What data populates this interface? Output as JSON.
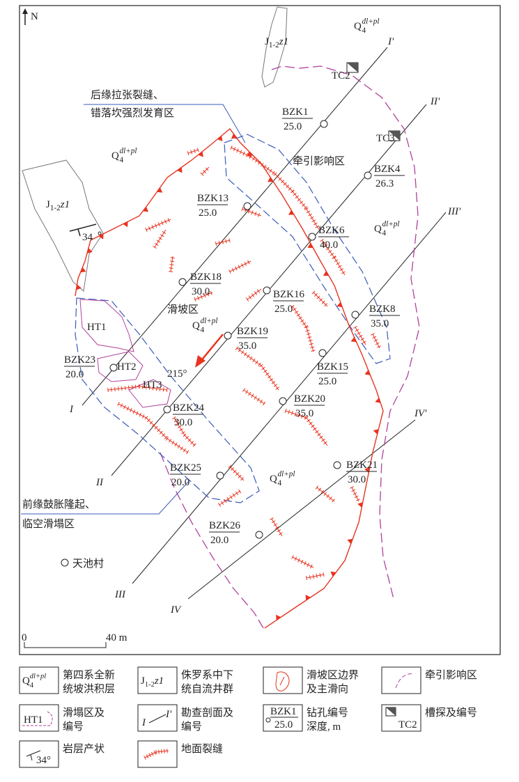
{
  "map": {
    "north": "N",
    "quaternary_labels": [
      {
        "base": "Q",
        "sub": "4",
        "sup": "dl+pl"
      },
      {
        "base": "Q",
        "sub": "4",
        "sup": "dl+pl"
      },
      {
        "base": "Q",
        "sub": "4",
        "sup": "dl+pl"
      },
      {
        "base": "Q",
        "sub": "4",
        "sup": "dl+pl"
      },
      {
        "base": "Q",
        "sub": "4",
        "sup": "dl+pl"
      }
    ],
    "jurassic_labels": [
      {
        "base": "J",
        "sub": "1-2",
        "rest": "z1"
      },
      {
        "base": "J",
        "sub": "1-2",
        "rest": "z1"
      }
    ],
    "dip": "34",
    "sections": [
      {
        "start": "I",
        "end": "I'"
      },
      {
        "start": "II",
        "end": "II'"
      },
      {
        "start": "III",
        "end": "III'"
      },
      {
        "start": "IV",
        "end": "IV'"
      }
    ],
    "trenches": [
      "TC2",
      "TC3"
    ],
    "callouts": [
      [
        "后缘拉张裂缝、",
        "错落坎强烈发育区"
      ],
      [
        "前缘鼓胀隆起、",
        "临空滑塌区"
      ]
    ],
    "landslide_label": "滑坡区",
    "traction_label": "牵引影响区",
    "slide_direction": "215°",
    "collapse_areas": [
      "HT1",
      "HT2",
      "HT3"
    ],
    "boreholes": [
      {
        "id": "BZK1",
        "depth": "25.0"
      },
      {
        "id": "BZK4",
        "depth": "26.3"
      },
      {
        "id": "BZK13",
        "depth": "25.0"
      },
      {
        "id": "BZK6",
        "depth": "40.0"
      },
      {
        "id": "BZK18",
        "depth": "30.0"
      },
      {
        "id": "BZK16",
        "depth": "25.0"
      },
      {
        "id": "BZK8",
        "depth": "35.0"
      },
      {
        "id": "BZK19",
        "depth": "35.0"
      },
      {
        "id": "BZK23",
        "depth": "20.0"
      },
      {
        "id": "BZK15",
        "depth": "25.0"
      },
      {
        "id": "BZK20",
        "depth": "35.0"
      },
      {
        "id": "BZK24",
        "depth": "30.0"
      },
      {
        "id": "BZK21",
        "depth": "30.0"
      },
      {
        "id": "BZK25",
        "depth": "20.0"
      },
      {
        "id": "BZK26",
        "depth": "20.0"
      }
    ],
    "village": "天池村",
    "scale": {
      "start": "0",
      "end": "40 m"
    }
  },
  "legend": [
    {
      "symbol": {
        "base": "Q",
        "sub": "4",
        "sup": "dl+pl"
      },
      "label": [
        "第四系全新",
        "统坡洪积层"
      ]
    },
    {
      "symbol": {
        "base": "J",
        "sub": "1-2",
        "rest": "z1"
      },
      "label": [
        "侏罗系中下",
        "统自流井群"
      ]
    },
    {
      "label": [
        "滑坡区边界",
        "及主滑向"
      ]
    },
    {
      "label": [
        "牵引影响区"
      ]
    },
    {
      "symbol": "HT1",
      "label": [
        "滑塌区及",
        "编号"
      ]
    },
    {
      "symbol": {
        "start": "I",
        "end": "I'"
      },
      "label": [
        "勘查剖面及",
        "编号"
      ]
    },
    {
      "symbol": {
        "id": "BZK1",
        "depth": "25.0"
      },
      "label": [
        "钻孔编号",
        "深度, m"
      ]
    },
    {
      "symbol": "TC2",
      "label": [
        "槽探及编号"
      ]
    },
    {
      "symbol": "34°",
      "label": [
        "岩层产状"
      ]
    },
    {
      "label": [
        "地面裂缝"
      ]
    }
  ]
}
